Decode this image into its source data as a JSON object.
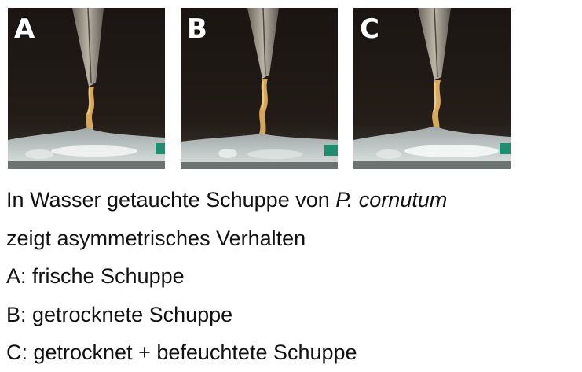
{
  "panels": [
    {
      "letter": "A"
    },
    {
      "letter": "B"
    },
    {
      "letter": "C"
    }
  ],
  "caption": {
    "line1_prefix": "In Wasser getauchte Schuppe von ",
    "line1_species": "P. cornutum",
    "line2": "zeigt asymmetrisches Verhalten",
    "line3": "A: frische Schuppe",
    "line4": "B: getrocknete Schuppe",
    "line5": "C: getrocknet + befeuchtete Schuppe"
  },
  "colors": {
    "photo_background": "#151110",
    "scale": "#d8a85a",
    "tweezer": "#8a8478",
    "water": "#c9d3d2",
    "caption_text": "#111111"
  }
}
